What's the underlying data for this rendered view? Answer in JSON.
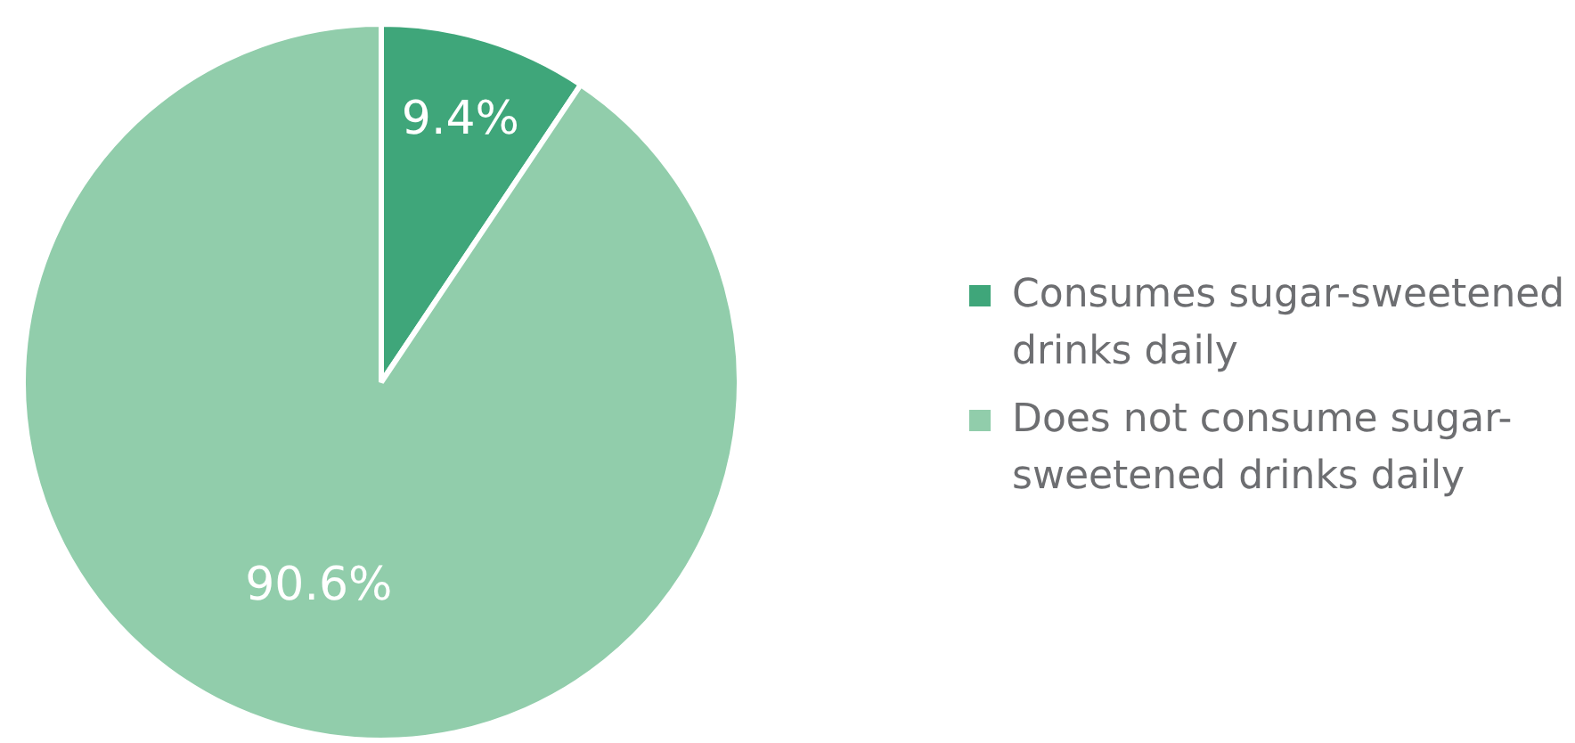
{
  "chart_data": {
    "type": "pie",
    "categories": [
      "Consumes sugar-sweetened drinks daily",
      "Does not consume sugar-sweetened drinks daily"
    ],
    "values": [
      9.4,
      90.6
    ],
    "colors": [
      "#3fa67a",
      "#91cdab"
    ],
    "value_labels": [
      "9.4%",
      "90.6%"
    ],
    "legend": "right"
  }
}
